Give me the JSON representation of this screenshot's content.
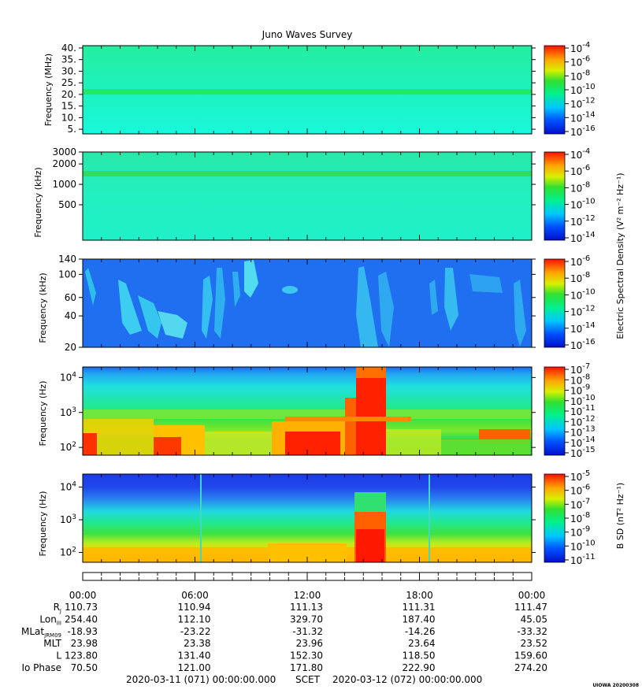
{
  "title": "Juno Waves Survey",
  "chart_data": [
    {
      "type": "heatmap",
      "name": "panel-mhz",
      "ylabel": "Frequency (MHz)",
      "yscale": "linear",
      "ylim": [
        3,
        41
      ],
      "yticks": [
        {
          "v": 5,
          "t": "5."
        },
        {
          "v": 10,
          "t": "10."
        },
        {
          "v": 15,
          "t": "15."
        },
        {
          "v": 20,
          "t": "20."
        },
        {
          "v": 25,
          "t": "25."
        },
        {
          "v": 30,
          "t": "30."
        },
        {
          "v": 35,
          "t": "35."
        },
        {
          "v": 40,
          "t": "40."
        }
      ],
      "background_color": "#1df5c8",
      "band_frequency": 21.5,
      "band_color": "#22e868",
      "colorbar": {
        "exponents": [
          "-4",
          "-6",
          "-8",
          "-10",
          "-12",
          "-14",
          "-16"
        ],
        "label": ""
      }
    },
    {
      "type": "heatmap",
      "name": "panel-khz-high",
      "ylabel": "Frequency (kHz)",
      "yscale": "log",
      "ylim": [
        150,
        3000
      ],
      "yticks": [
        {
          "v": 500,
          "t": "500"
        },
        {
          "v": 1000,
          "t": "1000"
        },
        {
          "v": 2000,
          "t": "2000"
        },
        {
          "v": 3000,
          "t": "3000"
        }
      ],
      "background_color": "#25f0c0",
      "band_frequency": 1500,
      "band_color": "#30dc60",
      "colorbar": {
        "exponents": [
          "-4",
          "-6",
          "-8",
          "-10",
          "-12",
          "-14"
        ],
        "label": "Electric Spectral Density (V² m⁻² Hz⁻¹)"
      }
    },
    {
      "type": "heatmap",
      "name": "panel-khz-low",
      "ylabel": "Frequency (kHz)",
      "yscale": "log",
      "ylim": [
        20,
        140
      ],
      "yticks": [
        {
          "v": 20,
          "t": "20"
        },
        {
          "v": 40,
          "t": "40"
        },
        {
          "v": 60,
          "t": "60"
        },
        {
          "v": 100,
          "t": "100"
        },
        {
          "v": 140,
          "t": "140"
        }
      ],
      "background_color": "#1f6ff0",
      "colorbar": {
        "exponents": [
          "-6",
          "-8",
          "-10",
          "-12",
          "-14",
          "-16"
        ],
        "label": ""
      }
    },
    {
      "type": "heatmap",
      "name": "panel-hz-electric",
      "ylabel": "Frequency (Hz)",
      "yscale": "log",
      "ylim": [
        60,
        20000
      ],
      "yticks": [
        {
          "v": 100,
          "t": "10",
          "e": "2"
        },
        {
          "v": 1000,
          "t": "10",
          "e": "3"
        },
        {
          "v": 10000,
          "t": "10",
          "e": "4"
        }
      ],
      "background_color": "#1e78f0",
      "colorbar": {
        "exponents": [
          "-7",
          "-8",
          "-9",
          "-10",
          "-11",
          "-12",
          "-13",
          "-14",
          "-15"
        ],
        "label": ""
      }
    },
    {
      "type": "heatmap",
      "name": "panel-hz-magnetic",
      "ylabel": "Frequency (Hz)",
      "yscale": "log",
      "ylim": [
        50,
        25000
      ],
      "yticks": [
        {
          "v": 100,
          "t": "10",
          "e": "2"
        },
        {
          "v": 1000,
          "t": "10",
          "e": "3"
        },
        {
          "v": 10000,
          "t": "10",
          "e": "4"
        }
      ],
      "background_color": "#2346e8",
      "colorbar": {
        "exponents": [
          "-5",
          "-6",
          "-7",
          "-8",
          "-9",
          "-10",
          "-11"
        ],
        "label": "B SD (nT² Hz⁻¹)"
      }
    }
  ],
  "ephemeris": {
    "times": [
      "00:00",
      "06:00",
      "12:00",
      "18:00",
      "00:00"
    ],
    "rows": [
      {
        "label": "R",
        "sub": "J",
        "values": [
          "110.73",
          "110.94",
          "111.13",
          "111.31",
          "111.47"
        ]
      },
      {
        "label": "Lon",
        "sub": "III",
        "values": [
          "254.40",
          "112.10",
          "329.70",
          "187.40",
          "45.05"
        ]
      },
      {
        "label": "MLat",
        "sub": "JRM09",
        "values": [
          "-18.93",
          "-23.22",
          "-31.32",
          "-14.26",
          "-33.32"
        ]
      },
      {
        "label": "MLT",
        "sub": "",
        "values": [
          "23.98",
          "23.38",
          "23.96",
          "23.64",
          "23.52"
        ]
      },
      {
        "label": "L",
        "sub": "",
        "values": [
          "123.80",
          "131.40",
          "152.30",
          "118.50",
          "159.60"
        ]
      },
      {
        "label": "Io Phase",
        "sub": "",
        "values": [
          "70.50",
          "121.00",
          "171.80",
          "222.90",
          "274.20"
        ]
      }
    ]
  },
  "footer": {
    "start": "2020-03-11 (071) 00:00:00.000",
    "center": "SCET",
    "end": "2020-03-12 (072) 00:00:00.000"
  },
  "stamp": "UIOWA 20200308"
}
